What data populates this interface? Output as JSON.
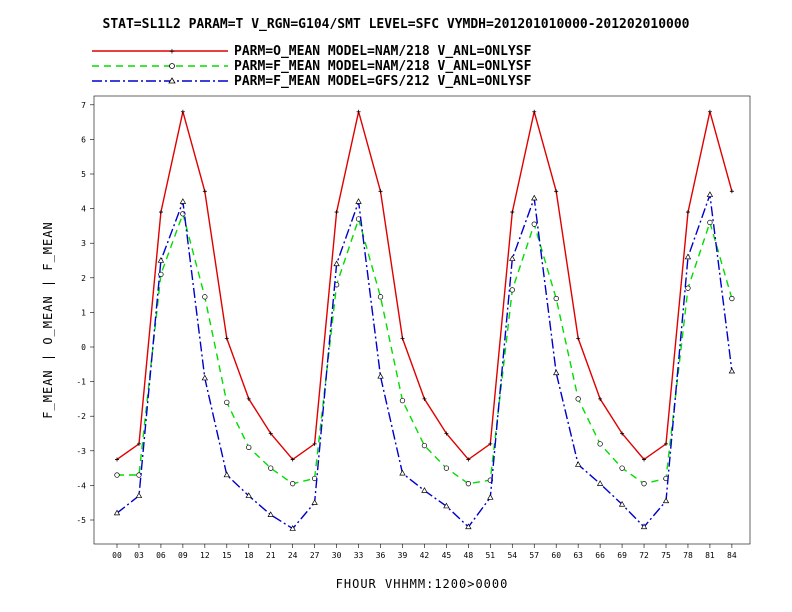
{
  "chart_data": {
    "type": "line",
    "title": "STAT=SL1L2 PARAM=T V_RGN=G104/SMT LEVEL=SFC VYMDH=201201010000-201202010000",
    "xlabel": "FHOUR VHHMM:1200>0000",
    "ylabel": "F_MEAN | O_MEAN | F_MEAN",
    "ylim": [
      -5.5,
      7.2
    ],
    "yticks": [
      -5,
      -4,
      -3,
      -2,
      -1,
      0,
      1,
      2,
      3,
      4,
      5,
      6,
      7
    ],
    "categories": [
      "00",
      "03",
      "06",
      "09",
      "12",
      "15",
      "18",
      "21",
      "24",
      "27",
      "30",
      "33",
      "36",
      "39",
      "42",
      "45",
      "48",
      "51",
      "54",
      "57",
      "60",
      "63",
      "66",
      "69",
      "72",
      "75",
      "78",
      "81",
      "84"
    ],
    "legend_position": "top",
    "grid": false,
    "series": [
      {
        "name": "PARM=O_MEAN MODEL=NAM/218 V_ANL=ONLYSF",
        "color": "#e00000",
        "dash": "solid",
        "marker": "plus",
        "values": [
          -3.25,
          -2.8,
          3.9,
          6.8,
          4.5,
          0.25,
          -1.5,
          -2.5,
          -3.25,
          -2.8,
          3.9,
          6.8,
          4.5,
          0.25,
          -1.5,
          -2.5,
          -3.25,
          -2.8,
          3.9,
          6.8,
          4.5,
          0.25,
          -1.5,
          -2.5,
          -3.25,
          -2.8,
          3.9,
          6.8,
          4.5
        ]
      },
      {
        "name": "PARM=F_MEAN MODEL=NAM/218 V_ANL=ONLYSF",
        "color": "#00dd00",
        "dash": "dashed",
        "marker": "circle",
        "values": [
          -3.7,
          -3.7,
          2.1,
          3.85,
          1.45,
          -1.6,
          -2.9,
          -3.5,
          -3.95,
          -3.8,
          1.8,
          3.7,
          1.45,
          -1.55,
          -2.85,
          -3.5,
          -3.95,
          -3.85,
          1.65,
          3.55,
          1.4,
          -1.5,
          -2.8,
          -3.5,
          -3.95,
          -3.8,
          1.7,
          3.6,
          1.4
        ]
      },
      {
        "name": "PARM=F_MEAN MODEL=GFS/212 V_ANL=ONLYSF",
        "color": "#0000cc",
        "dash": "dashdot",
        "marker": "triangle",
        "values": [
          -4.8,
          -4.3,
          2.5,
          4.2,
          -0.9,
          -3.7,
          -4.3,
          -4.85,
          -5.25,
          -4.5,
          2.4,
          4.2,
          -0.85,
          -3.65,
          -4.15,
          -4.6,
          -5.2,
          -4.35,
          2.55,
          4.3,
          -0.75,
          -3.4,
          -3.95,
          -4.55,
          -5.2,
          -4.45,
          2.6,
          4.4,
          -0.7
        ]
      }
    ]
  }
}
